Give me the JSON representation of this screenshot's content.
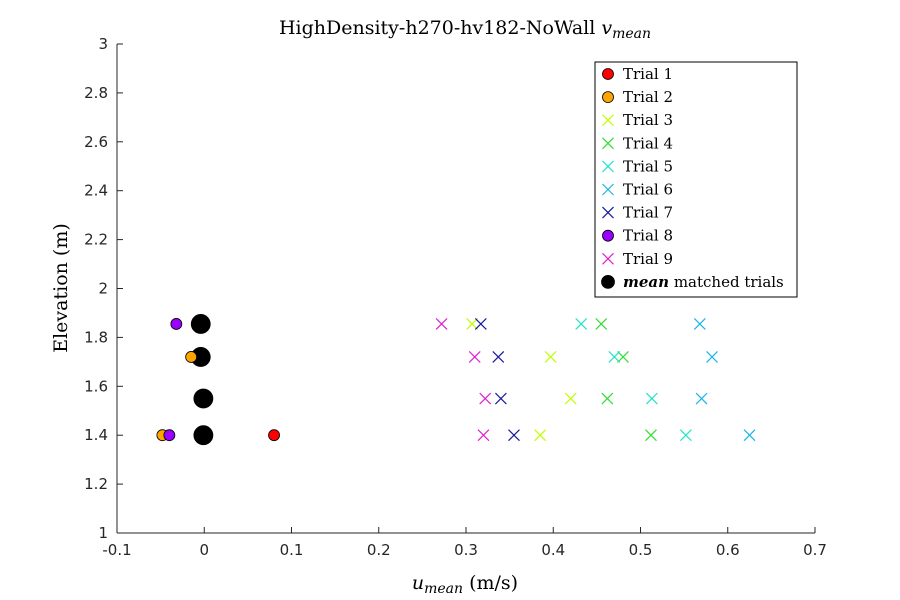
{
  "chart_data": {
    "type": "scatter",
    "title": {
      "main": "HighDensity-h270-hv182-NoWall ",
      "var": "v",
      "sub": "mean"
    },
    "xlabel": {
      "var": "u",
      "sub": "mean",
      "unit": " (m/s)"
    },
    "ylabel": "Elevation (m)",
    "xlim": [
      -0.1,
      0.7
    ],
    "ylim": [
      1,
      3
    ],
    "xticks": [
      -0.1,
      0,
      0.1,
      0.2,
      0.3,
      0.4,
      0.5,
      0.6,
      0.7
    ],
    "xtick_labels": [
      "-0.1",
      "0",
      "0.1",
      "0.2",
      "0.3",
      "0.4",
      "0.5",
      "0.6",
      "0.7"
    ],
    "yticks": [
      1,
      1.2,
      1.4,
      1.6,
      1.8,
      2,
      2.2,
      2.4,
      2.6,
      2.8,
      3
    ],
    "ytick_labels": [
      "1",
      "1.2",
      "1.4",
      "1.6",
      "1.8",
      "2",
      "2.2",
      "2.4",
      "2.6",
      "2.8",
      "3"
    ],
    "grid": false,
    "legend_position": "top-right",
    "series": [
      {
        "name": "Trial 1",
        "marker": "circle",
        "color": "#ff0000",
        "points": [
          [
            0.08,
            1.4
          ]
        ]
      },
      {
        "name": "Trial 2",
        "marker": "circle",
        "color": "#ffa500",
        "points": [
          [
            -0.048,
            1.4
          ],
          [
            -0.015,
            1.72
          ]
        ]
      },
      {
        "name": "Trial 3",
        "marker": "x",
        "color": "#bfff00",
        "points": [
          [
            0.385,
            1.4
          ],
          [
            0.42,
            1.55
          ],
          [
            0.397,
            1.72
          ],
          [
            0.307,
            1.855
          ]
        ]
      },
      {
        "name": "Trial 4",
        "marker": "x",
        "color": "#33dd33",
        "points": [
          [
            0.512,
            1.4
          ],
          [
            0.462,
            1.55
          ],
          [
            0.48,
            1.72
          ],
          [
            0.455,
            1.855
          ]
        ]
      },
      {
        "name": "Trial 5",
        "marker": "x",
        "color": "#22e5c5",
        "points": [
          [
            0.552,
            1.4
          ],
          [
            0.513,
            1.55
          ],
          [
            0.47,
            1.72
          ],
          [
            0.432,
            1.855
          ]
        ]
      },
      {
        "name": "Trial 6",
        "marker": "x",
        "color": "#1ab5e8",
        "points": [
          [
            0.625,
            1.4
          ],
          [
            0.57,
            1.55
          ],
          [
            0.582,
            1.72
          ],
          [
            0.568,
            1.855
          ]
        ]
      },
      {
        "name": "Trial 7",
        "marker": "x",
        "color": "#1a1aa0",
        "points": [
          [
            0.355,
            1.4
          ],
          [
            0.34,
            1.55
          ],
          [
            0.337,
            1.72
          ],
          [
            0.317,
            1.855
          ]
        ]
      },
      {
        "name": "Trial 8",
        "marker": "circle",
        "color": "#9b00ff",
        "points": [
          [
            -0.04,
            1.4
          ],
          [
            -0.032,
            1.855
          ]
        ]
      },
      {
        "name": "Trial 9",
        "marker": "x",
        "color": "#e020d0",
        "points": [
          [
            0.32,
            1.4
          ],
          [
            0.322,
            1.55
          ],
          [
            0.31,
            1.72
          ],
          [
            0.272,
            1.855
          ]
        ]
      },
      {
        "name": "mean matched trials",
        "legend_italic": "mean",
        "legend_rest": " matched trials",
        "marker": "circle-large",
        "color": "#000000",
        "points": [
          [
            -0.001,
            1.4
          ],
          [
            -0.001,
            1.55
          ],
          [
            -0.004,
            1.72
          ],
          [
            -0.004,
            1.855
          ]
        ]
      }
    ]
  }
}
